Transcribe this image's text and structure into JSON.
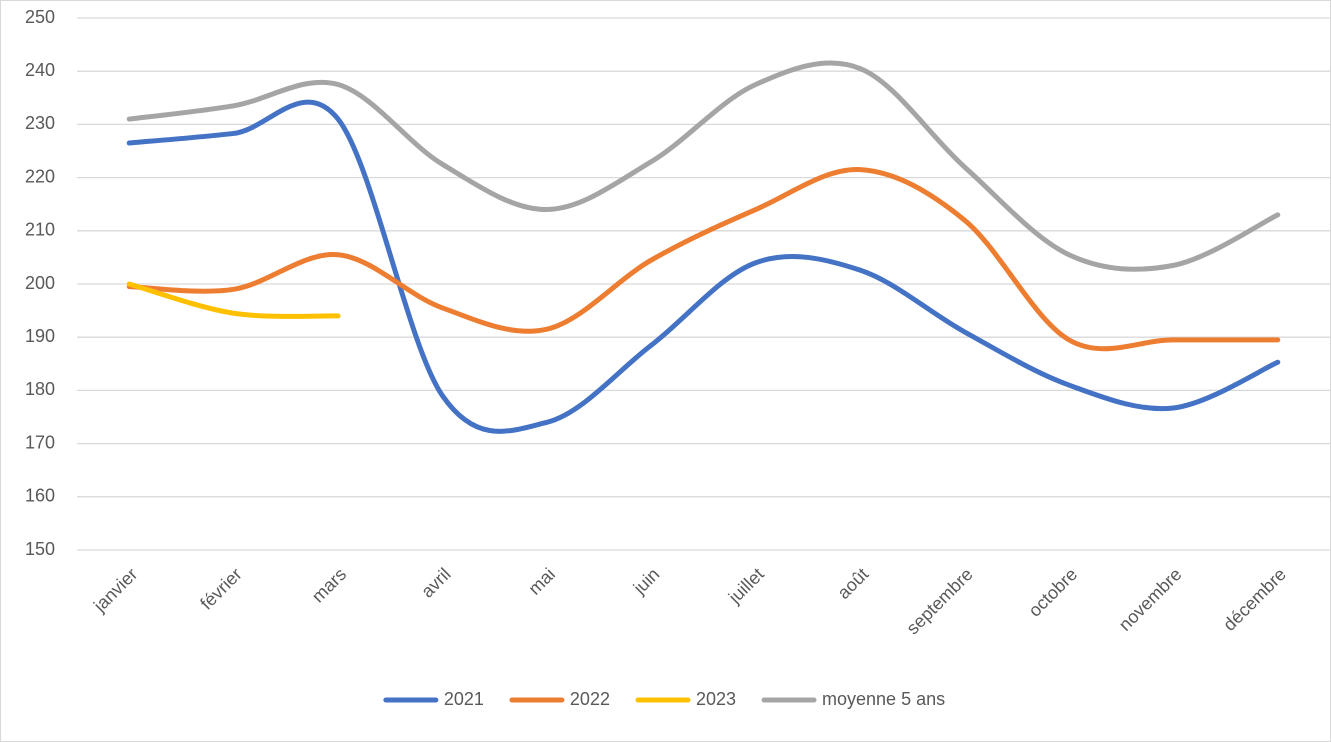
{
  "chart_data": {
    "type": "line",
    "categories": [
      "janvier",
      "février",
      "mars",
      "avril",
      "mai",
      "juin",
      "juillet",
      "août",
      "septembre",
      "octobre",
      "novembre",
      "décembre"
    ],
    "series": [
      {
        "name": "2021",
        "color": "#4472c4",
        "values": [
          226.5,
          228.3,
          231,
          179,
          174,
          188.5,
          204,
          202.6,
          191,
          181,
          176.7,
          185.3
        ]
      },
      {
        "name": "2022",
        "color": "#ed7d31",
        "values": [
          199.5,
          199,
          205.5,
          195.5,
          191.5,
          204.5,
          214,
          221.5,
          212,
          189.5,
          189.5,
          189.5
        ]
      },
      {
        "name": "2023",
        "color": "#ffc000",
        "values": [
          200,
          194.5,
          194,
          null,
          null,
          null,
          null,
          null,
          null,
          null,
          null,
          null
        ]
      },
      {
        "name": "moyenne 5 ans",
        "color": "#a5a5a5",
        "values": [
          231,
          233.5,
          237.5,
          222.5,
          214,
          223,
          237.5,
          240.5,
          222,
          205.5,
          203.5,
          213
        ]
      }
    ],
    "ylim": [
      150,
      250
    ],
    "yticks": [
      150,
      160,
      170,
      180,
      190,
      200,
      210,
      220,
      230,
      240,
      250
    ],
    "grid": true,
    "smooth": true,
    "legend": "bottom"
  }
}
